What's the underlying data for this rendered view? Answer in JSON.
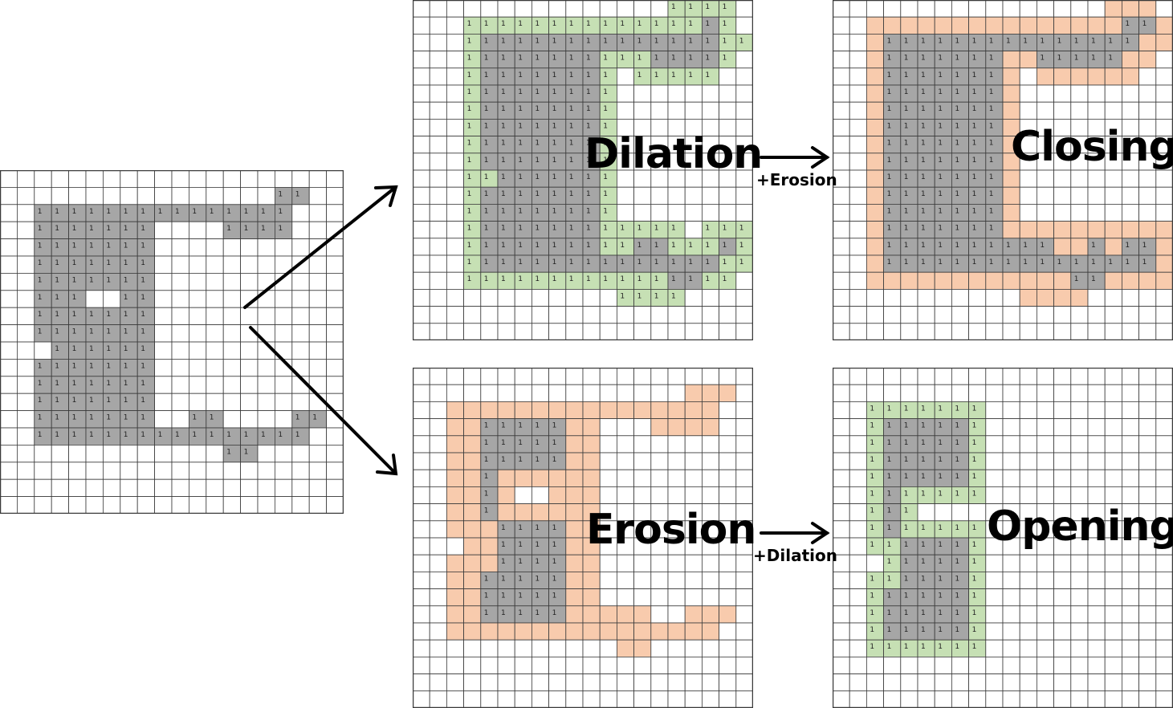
{
  "cell_text": "1",
  "colors": {
    "gray": "#a6a6a6",
    "green": "#c6e0b4",
    "orange": "#f8cbad",
    "grid": "#3a3a3a",
    "white": "#ffffff"
  },
  "labels": {
    "dilation": "Dilation",
    "erosion": "Erosion",
    "closing": "Closing",
    "opening": "Opening",
    "plus_erosion": "+Erosion",
    "plus_dilation": "+Dilation"
  },
  "grids": {
    "original": {
      "gray": [
        "...............",
        ""
      ]
    }
  },
  "panels": {
    "original": {
      "rows": [
        "....................",
        "................GG..",
        "..GGGGGGGGGGGGGGG...",
        "..GGGGGGG....GGGG...",
        "..GGGGGGG...........",
        "..GGGGGGG...........",
        "..GGGGGGG...........",
        "..GGG..GG...........",
        "..GGGGGGG...........",
        "..GGGGGGG...........",
        "...GGGGGG...........",
        "..GGGGGGG...........",
        "..GGGGGGG...........",
        "..GGGGGGG...........",
        "..GGGGGGG..GG....GG.",
        "..GGGGGGGGGGGGGGGG..",
        ".............GG.....",
        "....................",
        "....................",
        "...................."
      ],
      "labeled": "G"
    },
    "dilation": {
      "rows": [
        "...............QQQQ.",
        "...QQQQQQQQQQQQQQGQ.",
        "...QGGGGGGGGGGGGGGQQ.",
        "...QGGGGGGGQQQGGGGQ.",
        "...QGGGGGGGQ.QQQQQ..",
        "...QGGGGGGGQ........",
        "...QGGGGGGGQ........",
        "...QGGGGGGGQ........",
        "...QGGGGGGGQ........",
        "...QGGGGGGGQ........",
        "...QQGGGGGGQ........",
        "...QGGGGGGGQ........",
        "...QGGGGGGGQ........",
        "...QGGGGGGGQQQQQ.QQQ",
        "...QGGGGGGGQQGGQQQGQ",
        "...QGGGGGGGGGGGGGGQQ",
        "...QQQQQQQQQQQQGGQQ.",
        "............QQQQ....",
        "....................",
        "...................."
      ],
      "labeled": "GQ"
    },
    "closing": {
      "rows": [
        "................OOO.",
        "..OOOOOOOOOOOOOOOGGO",
        "..OGGGGGGGGGGGGGGGOO",
        "..OGGGGGGGOOGGGGGOO.",
        "..OGGGGGGGO.OOOOOO..",
        "..OGGGGGGGO.........",
        "..OGGGGGGGO.........",
        "..OGGGGGGGO.........",
        "..OGGGGGGGO.........",
        "..OGGGGGGGO.........",
        "..OGGGGGGGO.........",
        "..OGGGGGGGO.........",
        "..OGGGGGGGO.........",
        "..OGGGGGGGOOOOOOOOOO",
        "..OGGGGGGGGGGOOGOGGO",
        "..OGGGGGGGGGGGGGGGGO",
        "..OOOOOOOOOOOOGGOOOO",
        "...........OOOO.....",
        "....................",
        "...................."
      ],
      "labeled": "G"
    },
    "erosion": {
      "rows": [
        "....................",
        "................OOO.",
        "..OOOOOOOOOOOOOOOO..",
        "..OOGGGGGOO...OOOO..",
        "..OOGGGGGOO.........",
        "..OOGGGGGOO.........",
        "..OOGOOOOOO.........",
        "..OOGO..OOO.........",
        "..OOGOOOOOO.........",
        "..OOOGGGGOO.........",
        "...OOGGGGOO.........",
        "..OOOGGGGOO.........",
        "..OOGGGGGOO.........",
        "..OOGGGGGOO.........",
        "..OOGGGGGOOOOO..OOO.",
        "..OOOOOOOOOOOOOOOO..",
        "............OO......",
        "....................",
        "....................",
        "...................."
      ],
      "labeled": "G"
    },
    "opening": {
      "rows": [
        "....................",
        "....................",
        "..QQQQQQQ...........",
        "..QGGGGGQ...........",
        "..QGGGGGQ...........",
        "..QGGGGGQ...........",
        "..QGGGGGQ...........",
        "..QGQQQQQ...........",
        "..QGQ...............",
        "..QGQQQQQ...........",
        "..QQGGGGQ...........",
        "...QGGGGQ...........",
        "..QQGGGGQ...........",
        "..QGGGGGQ...........",
        "..QGGGGGQ...........",
        "..QGGGGGQ...........",
        "..QQQQQQQ...........",
        "....................",
        "....................",
        "...................."
      ],
      "labeled": "GQ"
    }
  }
}
